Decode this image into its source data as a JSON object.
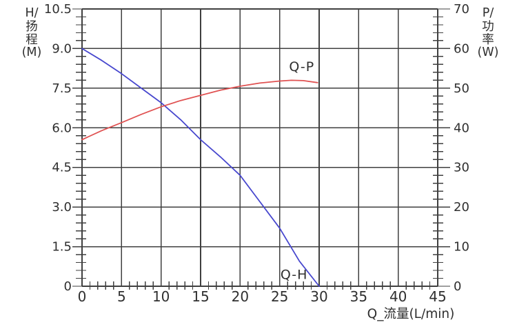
{
  "chart_data": {
    "type": "line",
    "title": "",
    "x_axis": {
      "label": "Q_流量(L/min)",
      "min": 0,
      "max": 45,
      "major_step": 5,
      "minor_step": 1,
      "tick_labels": [
        "0",
        "5",
        "10",
        "15",
        "20",
        "25",
        "30",
        "35",
        "40",
        "45"
      ]
    },
    "left_axis": {
      "title_lines": [
        "H/",
        "扬",
        "程",
        "(M)"
      ],
      "min": 0,
      "max": 10.5,
      "major_step": 1.5,
      "minor_step": 0.3,
      "tick_labels": [
        "0",
        "1.5",
        "3.0",
        "4.5",
        "6.0",
        "7.5",
        "9.0",
        "10.5"
      ]
    },
    "right_axis": {
      "title_lines": [
        "P/",
        "功",
        "率",
        "(W)"
      ],
      "min": 0,
      "max": 70,
      "major_step": 10,
      "minor_step": 2,
      "tick_labels": [
        "0",
        "10",
        "20",
        "30",
        "40",
        "50",
        "60",
        "70"
      ]
    },
    "grid": {
      "on": true,
      "color": "#3f3f3f"
    },
    "background": "#ffffff",
    "text_color": "#2f2f2f",
    "series": [
      {
        "id": "qh",
        "name": "Q-H",
        "axis": "left",
        "color": "#4747ce",
        "label": "Q-H",
        "label_at": {
          "q": 25.1,
          "v": 0.28
        },
        "points": [
          [
            0,
            9.0
          ],
          [
            2.5,
            8.55
          ],
          [
            5,
            8.05
          ],
          [
            7.5,
            7.5
          ],
          [
            10,
            6.95
          ],
          [
            12.5,
            6.3
          ],
          [
            15,
            5.55
          ],
          [
            17.5,
            4.9
          ],
          [
            20,
            4.2
          ],
          [
            22.5,
            3.2
          ],
          [
            25,
            2.2
          ],
          [
            27.5,
            0.95
          ],
          [
            30,
            0
          ]
        ]
      },
      {
        "id": "qp",
        "name": "Q-P",
        "axis": "right",
        "color": "#e05252",
        "label": "Q-P",
        "label_at": {
          "q": 26.2,
          "v": 54.3
        },
        "points": [
          [
            0,
            37
          ],
          [
            2.5,
            39.3
          ],
          [
            5,
            41.3
          ],
          [
            7.5,
            43.4
          ],
          [
            10,
            45.3
          ],
          [
            12.5,
            46.9
          ],
          [
            15,
            48.2
          ],
          [
            17.5,
            49.5
          ],
          [
            20,
            50.5
          ],
          [
            22.5,
            51.3
          ],
          [
            25,
            51.8
          ],
          [
            26.5,
            52
          ],
          [
            28,
            51.9
          ],
          [
            29.8,
            51.4
          ]
        ]
      }
    ]
  }
}
